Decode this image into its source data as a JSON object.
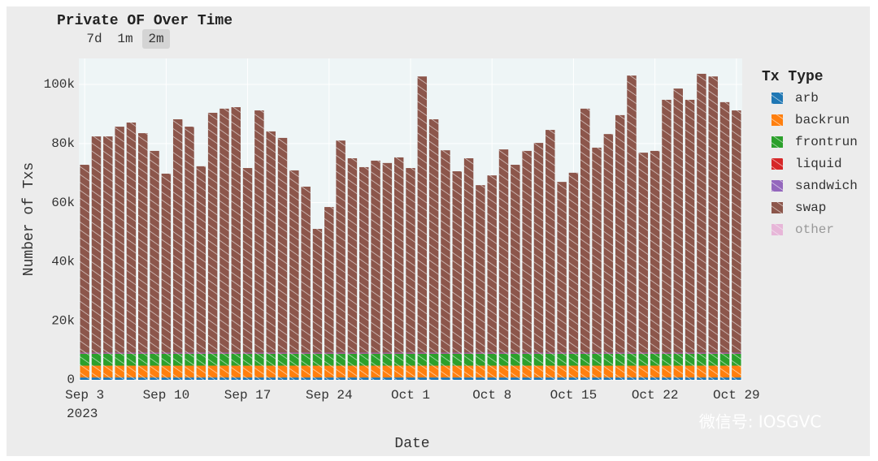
{
  "chart_data": {
    "type": "stacked_bar",
    "title": "Private OF Over Time",
    "range_buttons": [
      "7d",
      "1m",
      "2m"
    ],
    "active_range": "2m",
    "x_title": "Date",
    "y_title": "Number of Txs",
    "legend_title": "Tx Type",
    "x": [
      "2023-09-03",
      "2023-09-04",
      "2023-09-05",
      "2023-09-06",
      "2023-09-07",
      "2023-09-08",
      "2023-09-09",
      "2023-09-10",
      "2023-09-11",
      "2023-09-12",
      "2023-09-13",
      "2023-09-14",
      "2023-09-15",
      "2023-09-16",
      "2023-09-17",
      "2023-09-18",
      "2023-09-19",
      "2023-09-20",
      "2023-09-21",
      "2023-09-22",
      "2023-09-23",
      "2023-09-24",
      "2023-09-25",
      "2023-09-26",
      "2023-09-27",
      "2023-09-28",
      "2023-09-29",
      "2023-09-30",
      "2023-10-01",
      "2023-10-02",
      "2023-10-03",
      "2023-10-04",
      "2023-10-05",
      "2023-10-06",
      "2023-10-07",
      "2023-10-08",
      "2023-10-09",
      "2023-10-10",
      "2023-10-11",
      "2023-10-12",
      "2023-10-13",
      "2023-10-14",
      "2023-10-15",
      "2023-10-16",
      "2023-10-17",
      "2023-10-18",
      "2023-10-19",
      "2023-10-20",
      "2023-10-21",
      "2023-10-22",
      "2023-10-23",
      "2023-10-24",
      "2023-10-25",
      "2023-10-26",
      "2023-10-27",
      "2023-10-28",
      "2023-10-29"
    ],
    "xticks": [
      {
        "value": "2023-09-03",
        "label": "Sep 3"
      },
      {
        "value": "2023-09-10",
        "label": "Sep 10"
      },
      {
        "value": "2023-09-17",
        "label": "Sep 17"
      },
      {
        "value": "2023-09-24",
        "label": "Sep 24"
      },
      {
        "value": "2023-10-01",
        "label": "Oct 1"
      },
      {
        "value": "2023-10-08",
        "label": "Oct 8"
      },
      {
        "value": "2023-10-15",
        "label": "Oct 15"
      },
      {
        "value": "2023-10-22",
        "label": "Oct 22"
      },
      {
        "value": "2023-10-29",
        "label": "Oct 29"
      }
    ],
    "xtick_year": "2023",
    "ylim": [
      0,
      108800
    ],
    "yticks": [
      0,
      {
        "value": 20000,
        "label": "20k"
      },
      {
        "value": 40000,
        "label": "40k"
      },
      {
        "value": 60000,
        "label": "60k"
      },
      {
        "value": 80000,
        "label": "80k"
      },
      {
        "value": 100000,
        "label": "100k"
      }
    ],
    "grid": true,
    "series": [
      {
        "name": "arb",
        "color": "#1f77b4",
        "visible": true,
        "values": [
          800,
          800,
          800,
          800,
          800,
          800,
          800,
          800,
          800,
          800,
          800,
          800,
          800,
          800,
          800,
          800,
          800,
          800,
          800,
          800,
          800,
          800,
          800,
          800,
          800,
          800,
          800,
          800,
          800,
          800,
          800,
          800,
          800,
          800,
          800,
          800,
          800,
          800,
          800,
          800,
          800,
          800,
          800,
          800,
          800,
          800,
          800,
          800,
          800,
          800,
          800,
          800,
          800,
          800,
          800,
          800,
          800
        ]
      },
      {
        "name": "backrun",
        "color": "#ff7f0e",
        "visible": true,
        "values": [
          4000,
          4000,
          4000,
          4000,
          4000,
          4000,
          4000,
          4000,
          4000,
          4000,
          4000,
          4000,
          4000,
          4000,
          4000,
          4000,
          4000,
          4000,
          4000,
          4000,
          4000,
          4000,
          4000,
          4000,
          4000,
          4000,
          4000,
          4000,
          4000,
          4000,
          4000,
          4000,
          4000,
          4000,
          4000,
          4000,
          4000,
          4000,
          4000,
          4000,
          4000,
          4000,
          4000,
          4000,
          4000,
          4000,
          4000,
          4000,
          4000,
          4000,
          4000,
          4000,
          4000,
          4000,
          4000,
          4000,
          4000
        ]
      },
      {
        "name": "frontrun",
        "color": "#2ca02c",
        "visible": true,
        "values": [
          4000,
          4000,
          4000,
          4000,
          4000,
          4000,
          4000,
          4000,
          4000,
          4000,
          4000,
          4000,
          4000,
          4000,
          4000,
          4000,
          4000,
          4000,
          4000,
          4000,
          4000,
          4000,
          4000,
          4000,
          4000,
          4000,
          4000,
          4000,
          4000,
          4000,
          4000,
          4000,
          4000,
          4000,
          4000,
          4000,
          4000,
          4000,
          4000,
          4000,
          4000,
          4000,
          4000,
          4000,
          4000,
          4000,
          4000,
          4000,
          4000,
          4000,
          4000,
          4000,
          4000,
          4000,
          4000,
          4000,
          4000
        ]
      },
      {
        "name": "liquid",
        "color": "#d62728",
        "visible": true,
        "values": [
          100,
          100,
          100,
          100,
          100,
          100,
          100,
          100,
          100,
          100,
          100,
          100,
          100,
          100,
          100,
          100,
          100,
          100,
          100,
          100,
          100,
          100,
          100,
          100,
          100,
          100,
          100,
          100,
          100,
          100,
          100,
          100,
          100,
          100,
          100,
          100,
          100,
          100,
          100,
          100,
          100,
          100,
          100,
          100,
          100,
          100,
          100,
          100,
          100,
          100,
          100,
          100,
          100,
          100,
          100,
          100,
          100
        ]
      },
      {
        "name": "sandwich",
        "color": "#9467bd",
        "visible": true,
        "values": [
          300,
          300,
          300,
          300,
          300,
          300,
          300,
          300,
          300,
          300,
          300,
          300,
          300,
          300,
          300,
          300,
          300,
          300,
          300,
          300,
          300,
          300,
          300,
          300,
          300,
          300,
          300,
          300,
          300,
          300,
          300,
          300,
          300,
          300,
          300,
          300,
          300,
          300,
          300,
          300,
          300,
          300,
          300,
          300,
          300,
          300,
          300,
          300,
          300,
          300,
          300,
          300,
          300,
          300,
          300,
          300,
          300
        ]
      },
      {
        "name": "swap",
        "color": "#8c564b",
        "visible": true,
        "values": [
          63600,
          73200,
          73200,
          76500,
          77900,
          74300,
          68300,
          60600,
          79000,
          76500,
          63100,
          81200,
          82600,
          83100,
          62500,
          82000,
          74900,
          72700,
          61700,
          56200,
          41900,
          49300,
          71800,
          65800,
          62800,
          65000,
          64200,
          66100,
          62500,
          93500,
          79000,
          68500,
          61400,
          65800,
          56700,
          60000,
          68800,
          63600,
          68300,
          71000,
          75400,
          57800,
          60900,
          82600,
          69400,
          74000,
          80400,
          93800,
          67700,
          68300,
          85600,
          89400,
          85600,
          94400,
          93500,
          84800,
          82000
        ]
      },
      {
        "name": "other",
        "color": "#e377c2",
        "visible": false,
        "values": [
          0,
          0,
          0,
          0,
          0,
          0,
          0,
          0,
          0,
          0,
          0,
          0,
          0,
          0,
          0,
          0,
          0,
          0,
          0,
          0,
          0,
          0,
          0,
          0,
          0,
          0,
          0,
          0,
          0,
          0,
          0,
          0,
          0,
          0,
          0,
          0,
          0,
          0,
          0,
          0,
          0,
          0,
          0,
          0,
          0,
          0,
          0,
          0,
          0,
          0,
          0,
          0,
          0,
          0,
          0,
          0,
          0
        ]
      }
    ]
  },
  "watermark": "微信号: IOSGVC"
}
